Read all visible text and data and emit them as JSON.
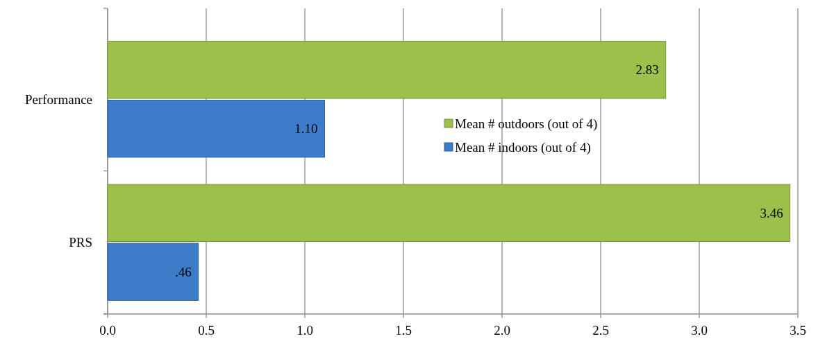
{
  "chart_data": {
    "type": "bar",
    "orientation": "horizontal",
    "categories": [
      "Performance",
      "PRS"
    ],
    "series": [
      {
        "name": "Mean # outdoors (out of 4)",
        "color": "#9bc14b",
        "values": [
          2.83,
          3.46
        ],
        "value_labels": [
          "2.83",
          "3.46"
        ]
      },
      {
        "name": "Mean # indoors (out of 4)",
        "color": "#3d7cc9",
        "values": [
          1.1,
          0.46
        ],
        "value_labels": [
          "1.10",
          ".46"
        ]
      }
    ],
    "xlim": [
      0,
      3.5
    ],
    "xticks": [
      {
        "value": 0,
        "label": "0.0"
      },
      0.5,
      {
        "value": 1,
        "label": "1.0"
      },
      1.5,
      {
        "value": 2,
        "label": "2.0"
      },
      2.5,
      {
        "value": 3,
        "label": "3.0"
      },
      3.5
    ],
    "grid": "x",
    "legend": "right"
  }
}
